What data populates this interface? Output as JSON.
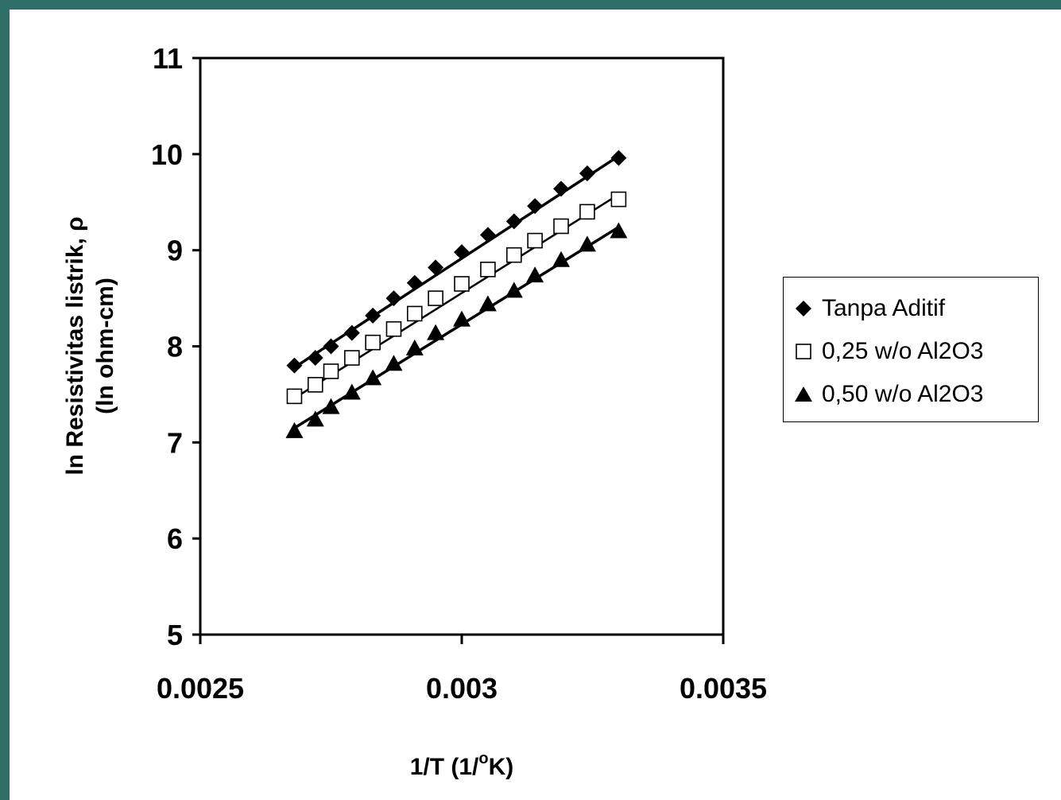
{
  "chart_data": {
    "type": "scatter",
    "title": "",
    "xlabel": "1/T (1/°K)",
    "xlabel_parts": {
      "main": "1/T (1/",
      "sup": "o",
      "tail": "K)"
    },
    "ylabel": [
      "ln Resistivitas listrik, ρ",
      "(ln ohm-cm)"
    ],
    "xlim": [
      0.0025,
      0.0035
    ],
    "ylim": [
      5,
      11
    ],
    "xticks": [
      0.0025,
      0.003,
      0.0035
    ],
    "xtick_labels": [
      "0.0025",
      "0.003",
      "0.0035"
    ],
    "yticks": [
      5,
      6,
      7,
      8,
      9,
      10,
      11
    ],
    "ytick_labels": [
      "5",
      "6",
      "7",
      "8",
      "9",
      "10",
      "11"
    ],
    "grid": false,
    "legend_position": "right",
    "series": [
      {
        "name": "Tanpa Aditif",
        "marker": "diamond-filled",
        "x": [
          0.00268,
          0.00272,
          0.00275,
          0.00279,
          0.00283,
          0.00287,
          0.00291,
          0.00295,
          0.003,
          0.00305,
          0.0031,
          0.00314,
          0.00319,
          0.00324,
          0.0033
        ],
        "y": [
          7.8,
          7.88,
          8.0,
          8.14,
          8.32,
          8.5,
          8.66,
          8.82,
          8.98,
          9.16,
          9.3,
          9.46,
          9.64,
          9.8,
          9.96
        ],
        "trendline": [
          [
            0.00268,
            7.78
          ],
          [
            0.0033,
            9.98
          ]
        ]
      },
      {
        "name": "0,25 w/o Al2O3",
        "marker": "square-open",
        "x": [
          0.00268,
          0.00272,
          0.00275,
          0.00279,
          0.00283,
          0.00287,
          0.00291,
          0.00295,
          0.003,
          0.00305,
          0.0031,
          0.00314,
          0.00319,
          0.00324,
          0.0033
        ],
        "y": [
          7.48,
          7.6,
          7.74,
          7.88,
          8.04,
          8.18,
          8.34,
          8.5,
          8.65,
          8.8,
          8.95,
          9.1,
          9.25,
          9.4,
          9.53
        ],
        "trendline": [
          [
            0.00268,
            7.46
          ],
          [
            0.0033,
            9.58
          ]
        ]
      },
      {
        "name": "0,50 w/o Al2O3",
        "marker": "triangle-filled",
        "x": [
          0.00268,
          0.00272,
          0.00275,
          0.00279,
          0.00283,
          0.00287,
          0.00291,
          0.00295,
          0.003,
          0.00305,
          0.0031,
          0.00314,
          0.00319,
          0.00324,
          0.0033
        ],
        "y": [
          7.12,
          7.24,
          7.37,
          7.52,
          7.67,
          7.82,
          7.98,
          8.14,
          8.28,
          8.44,
          8.58,
          8.74,
          8.9,
          9.06,
          9.2
        ],
        "trendline": [
          [
            0.00268,
            7.15
          ],
          [
            0.0033,
            9.24
          ]
        ]
      }
    ]
  }
}
